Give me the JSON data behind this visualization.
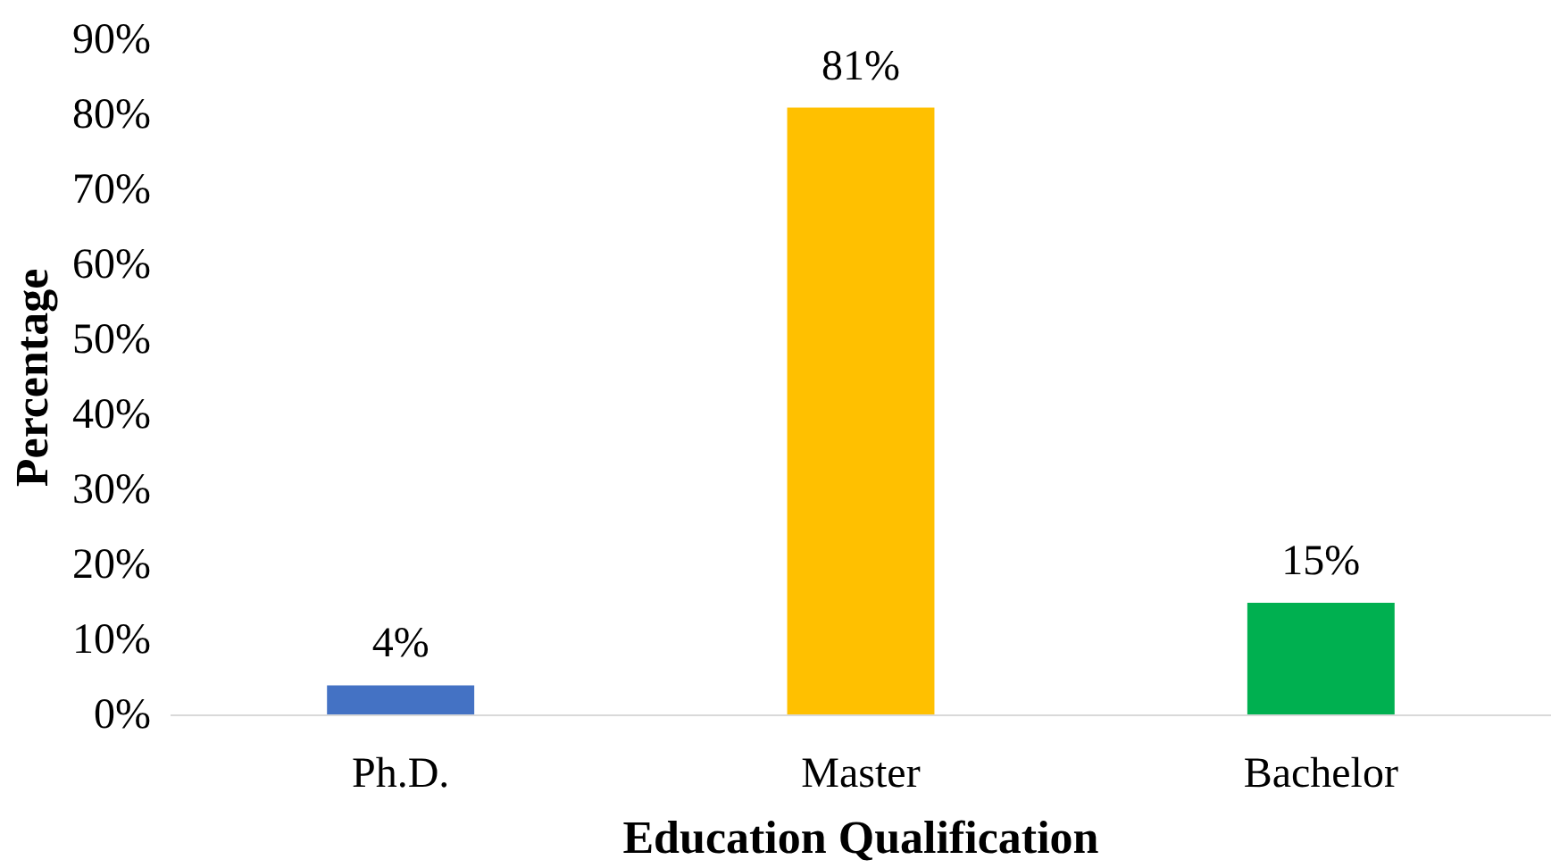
{
  "chart_data": {
    "type": "bar",
    "xlabel": "Education Qualification",
    "ylabel": "Percentage",
    "categories": [
      "Ph.D.",
      "Master",
      "Bachelor"
    ],
    "values": [
      4,
      81,
      15
    ],
    "colors": [
      "#4472c4",
      "#ffc000",
      "#00b050"
    ],
    "value_labels": [
      "4%",
      "81%",
      "15%"
    ],
    "ylim": [
      0,
      90
    ],
    "yticks": [
      {
        "value": 0,
        "label": "0%"
      },
      {
        "value": 10,
        "label": "10%"
      },
      {
        "value": 20,
        "label": "20%"
      },
      {
        "value": 30,
        "label": "30%"
      },
      {
        "value": 40,
        "label": "40%"
      },
      {
        "value": 50,
        "label": "50%"
      },
      {
        "value": 60,
        "label": "60%"
      },
      {
        "value": 70,
        "label": "70%"
      },
      {
        "value": 80,
        "label": "80%"
      },
      {
        "value": 90,
        "label": "90%"
      }
    ],
    "grid": false
  }
}
